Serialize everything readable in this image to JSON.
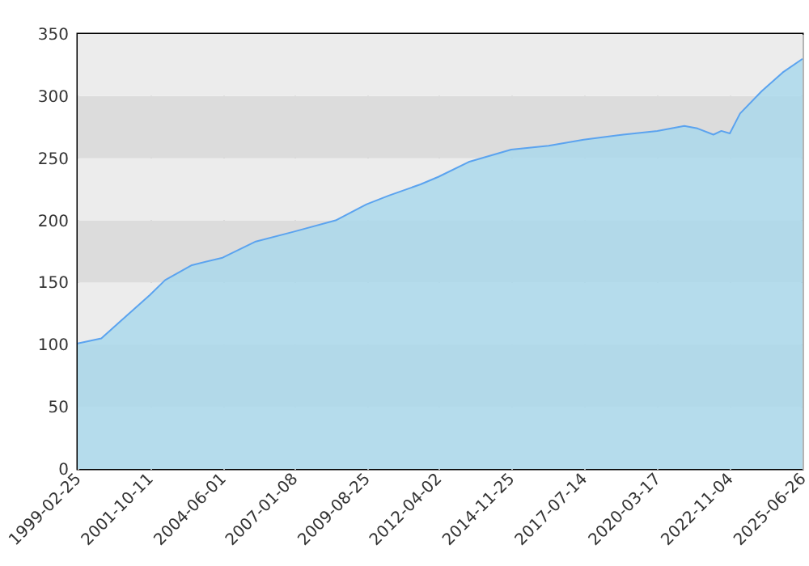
{
  "chart_data": {
    "type": "area",
    "x": [
      "1999-02-25",
      "2000-01-05",
      "2000-08-10",
      "2001-10-11",
      "2002-05-01",
      "2003-04-20",
      "2004-06-01",
      "2005-08-15",
      "2007-01-08",
      "2008-07-10",
      "2009-08-25",
      "2010-06-15",
      "2011-08-10",
      "2012-04-02",
      "2013-05-10",
      "2014-11-25",
      "2016-04-05",
      "2017-07-14",
      "2018-12-20",
      "2020-03-17",
      "2021-03-10",
      "2021-09-01",
      "2022-04-01",
      "2022-07-15",
      "2022-11-04",
      "2023-03-20",
      "2024-01-01",
      "2024-10-05",
      "2025-06-26"
    ],
    "series": [
      {
        "color": "#5ba3ef",
        "values": [
          101,
          105,
          117,
          140,
          152,
          164,
          170,
          183,
          191,
          200,
          213,
          220,
          229,
          235,
          247,
          257,
          260,
          265,
          269,
          272,
          276,
          274,
          269,
          272,
          270,
          286,
          304,
          319,
          330
        ]
      }
    ],
    "xlim": [
      "1999-02-25",
      "2025-06-26"
    ],
    "xticks": [
      "1999-02-25",
      "2001-10-11",
      "2004-06-01",
      "2007-01-08",
      "2009-08-25",
      "2012-04-02",
      "2014-11-25",
      "2017-07-14",
      "2020-03-17",
      "2022-11-04",
      "2025-06-26"
    ],
    "ylim": [
      0,
      350
    ],
    "yticks": [
      0,
      50,
      100,
      150,
      200,
      250,
      300,
      350
    ],
    "grid": true
  }
}
